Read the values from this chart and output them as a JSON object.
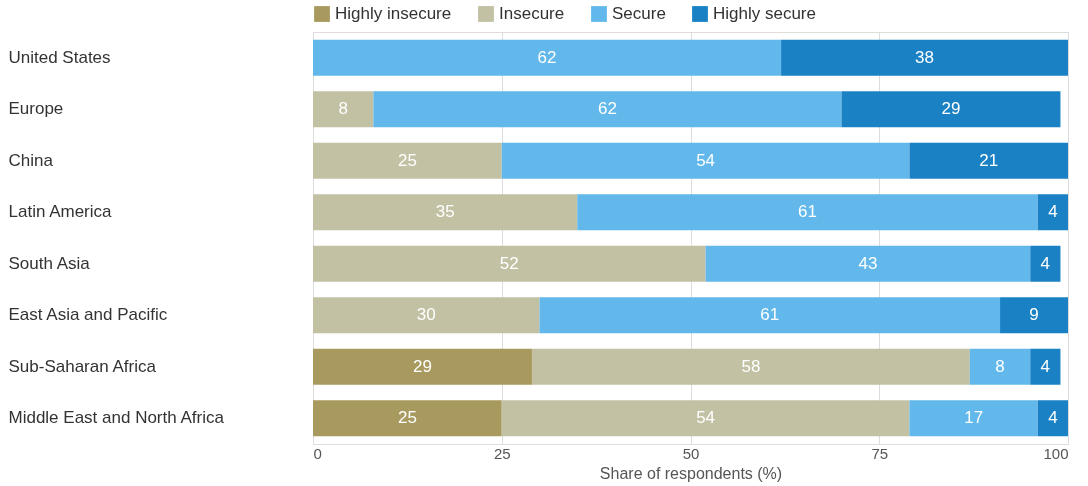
{
  "chart_data": {
    "type": "bar",
    "orientation": "horizontal",
    "stacked": true,
    "data_labels": true,
    "legend": "top left",
    "grid": "x",
    "xlabel": "Share of respondents (%)",
    "xlim": [
      0,
      100
    ],
    "xticks": [
      0,
      25,
      50,
      75,
      100
    ],
    "categories": [
      "United States",
      "Europe",
      "China",
      "Latin America",
      "South Asia",
      "East Asia and Pacific",
      "Sub-Saharan Africa",
      "Middle East and North Africa"
    ],
    "series": [
      {
        "name": "Highly insecure",
        "color": "#a89a5e",
        "values": [
          null,
          null,
          null,
          null,
          null,
          null,
          29,
          25
        ]
      },
      {
        "name": "Insecure",
        "color": "#c2c1a3",
        "values": [
          null,
          8,
          25,
          35,
          52,
          30,
          58,
          54
        ]
      },
      {
        "name": "Secure",
        "color": "#62b8ea",
        "values": [
          62,
          62,
          54,
          61,
          43,
          61,
          8,
          17
        ]
      },
      {
        "name": "Highly secure",
        "color": "#1a82c4",
        "values": [
          38,
          29,
          21,
          4,
          4,
          9,
          4,
          4
        ]
      }
    ]
  }
}
